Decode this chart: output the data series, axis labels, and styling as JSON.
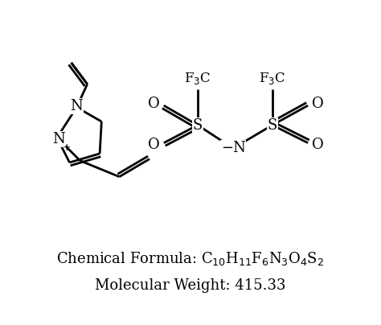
{
  "background_color": "#ffffff",
  "text_color": "#000000",
  "line_color": "#000000",
  "line_width": 2.0,
  "formula_line1": "Chemical Formula: C$_{10}$H$_{11}$F$_6$N$_3$O$_4$S$_2$",
  "formula_line2": "Molecular Weight: 415.33",
  "formula_fontsize": 13,
  "weight_fontsize": 13,
  "xlim": [
    0,
    10
  ],
  "ylim": [
    0,
    9
  ]
}
